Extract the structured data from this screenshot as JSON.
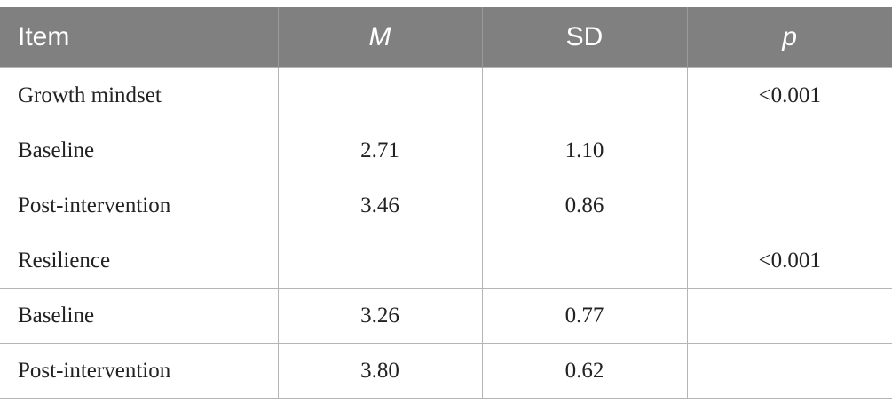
{
  "table": {
    "header": [
      "Item",
      "M",
      "SD",
      "p"
    ],
    "rows": [
      [
        "Growth mindset",
        null,
        null,
        "<0.001"
      ],
      [
        "Baseline",
        "2.71",
        "1.10",
        null
      ],
      [
        "Post-intervention",
        "3.46",
        "0.86",
        null
      ],
      [
        "Resilience",
        null,
        null,
        "<0.001"
      ],
      [
        "Baseline",
        "3.26",
        "0.77",
        null
      ],
      [
        "Post-intervention",
        "3.80",
        "0.62",
        null
      ]
    ]
  }
}
